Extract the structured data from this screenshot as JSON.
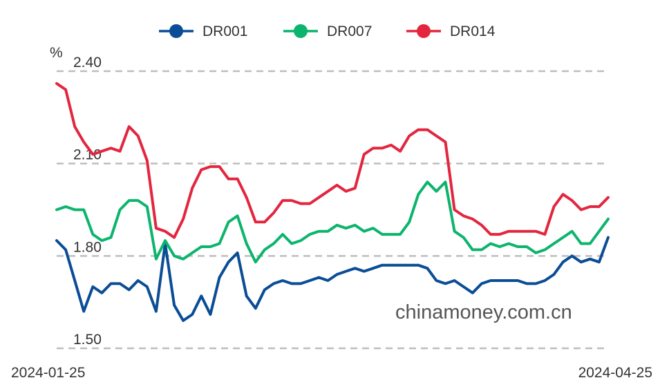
{
  "chart_data": {
    "type": "line",
    "ylabel": "%",
    "ylim": [
      1.5,
      2.4
    ],
    "yticks": [
      "1.50",
      "1.80",
      "2.10",
      "2.40"
    ],
    "x_start_label": "2024-01-25",
    "x_end_label": "2024-04-25",
    "grid": true,
    "legend_position": "top-center",
    "watermark": "chinamoney.com.cn",
    "series": [
      {
        "name": "DR001",
        "color": "#0a4d96",
        "values": [
          1.85,
          1.82,
          1.72,
          1.62,
          1.7,
          1.68,
          1.71,
          1.71,
          1.69,
          1.72,
          1.7,
          1.62,
          1.84,
          1.64,
          1.59,
          1.61,
          1.67,
          1.61,
          1.73,
          1.78,
          1.81,
          1.67,
          1.63,
          1.69,
          1.71,
          1.72,
          1.71,
          1.71,
          1.72,
          1.73,
          1.72,
          1.74,
          1.75,
          1.76,
          1.75,
          1.76,
          1.77,
          1.77,
          1.77,
          1.77,
          1.77,
          1.76,
          1.72,
          1.71,
          1.72,
          1.7,
          1.68,
          1.71,
          1.72,
          1.72,
          1.72,
          1.72,
          1.71,
          1.71,
          1.72,
          1.74,
          1.78,
          1.8,
          1.78,
          1.79,
          1.78,
          1.86
        ]
      },
      {
        "name": "DR007",
        "color": "#0cb46e",
        "values": [
          1.95,
          1.96,
          1.95,
          1.95,
          1.87,
          1.85,
          1.86,
          1.95,
          1.98,
          1.98,
          1.96,
          1.79,
          1.85,
          1.8,
          1.79,
          1.81,
          1.83,
          1.83,
          1.84,
          1.91,
          1.93,
          1.84,
          1.78,
          1.82,
          1.84,
          1.87,
          1.84,
          1.85,
          1.87,
          1.88,
          1.88,
          1.9,
          1.89,
          1.9,
          1.88,
          1.89,
          1.87,
          1.87,
          1.87,
          1.91,
          2.0,
          2.04,
          2.01,
          2.04,
          1.88,
          1.86,
          1.82,
          1.82,
          1.84,
          1.83,
          1.84,
          1.83,
          1.83,
          1.81,
          1.82,
          1.84,
          1.86,
          1.88,
          1.84,
          1.84,
          1.88,
          1.92
        ]
      },
      {
        "name": "DR014",
        "color": "#e3263e",
        "values": [
          2.36,
          2.34,
          2.22,
          2.17,
          2.13,
          2.14,
          2.15,
          2.14,
          2.22,
          2.19,
          2.11,
          1.89,
          1.88,
          1.86,
          1.92,
          2.02,
          2.08,
          2.09,
          2.09,
          2.05,
          2.05,
          1.99,
          1.91,
          1.91,
          1.94,
          1.98,
          1.98,
          1.97,
          1.97,
          1.99,
          2.01,
          2.03,
          2.01,
          2.02,
          2.13,
          2.15,
          2.15,
          2.16,
          2.14,
          2.19,
          2.21,
          2.21,
          2.19,
          2.17,
          1.95,
          1.93,
          1.92,
          1.9,
          1.87,
          1.87,
          1.88,
          1.88,
          1.88,
          1.88,
          1.87,
          1.96,
          2.0,
          1.98,
          1.95,
          1.96,
          1.96,
          1.99
        ]
      }
    ]
  }
}
